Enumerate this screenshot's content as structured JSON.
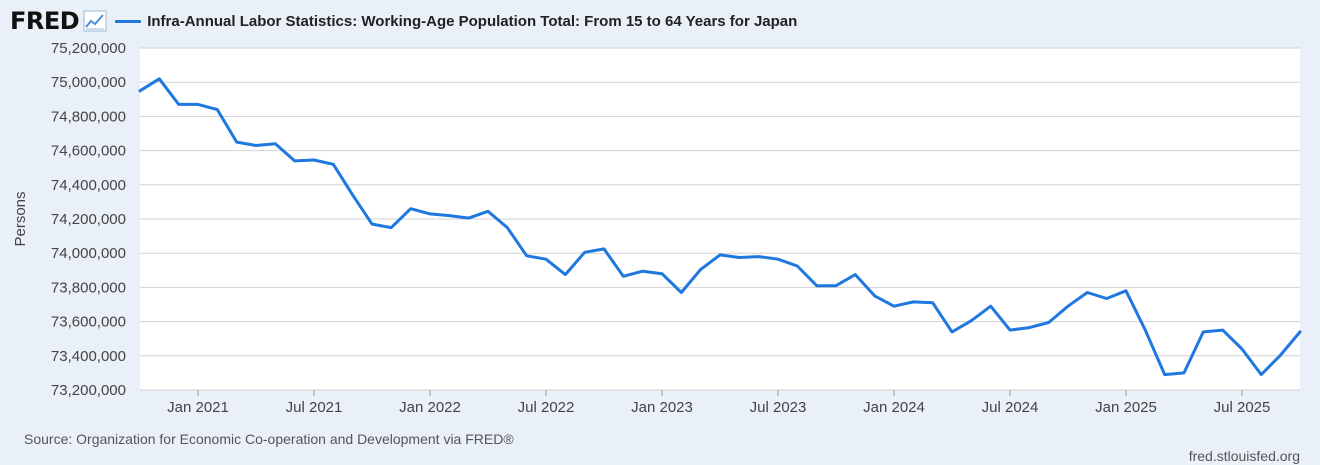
{
  "brand": {
    "logo_text": "FRED",
    "logo_icon": "chart-line-icon"
  },
  "colors": {
    "series": "#1f77e0",
    "plot_bg": "#ffffff",
    "page_bg": "#e9f0f8",
    "grid": "#d2d2d2"
  },
  "source_text": "Source: Organization for Economic Co-operation and Development via FRED®",
  "site_text": "fred.stlouisfed.org",
  "chart_data": {
    "type": "line",
    "title": "Infra-Annual Labor Statistics: Working-Age Population Total: From 15 to 64 Years for Japan",
    "xlabel": "",
    "ylabel": "Persons",
    "ylim": [
      73200000,
      75200000
    ],
    "yticks": [
      73200000,
      73400000,
      73600000,
      73800000,
      74000000,
      74200000,
      74400000,
      74600000,
      74800000,
      75000000,
      75200000
    ],
    "ytick_labels": [
      "73,200,000",
      "73,400,000",
      "73,600,000",
      "73,800,000",
      "74,000,000",
      "74,200,000",
      "74,400,000",
      "74,600,000",
      "74,800,000",
      "75,000,000",
      "75,200,000"
    ],
    "xlim": [
      "2020-10",
      "2025-10"
    ],
    "xticks": [
      "2021-01",
      "2021-07",
      "2022-01",
      "2022-07",
      "2023-01",
      "2023-07",
      "2024-01",
      "2024-07",
      "2025-01",
      "2025-07"
    ],
    "xtick_labels": [
      "Jan 2021",
      "Jul 2021",
      "Jan 2022",
      "Jul 2022",
      "Jan 2023",
      "Jul 2023",
      "Jan 2024",
      "Jul 2024",
      "Jan 2025",
      "Jul 2025"
    ],
    "grid": true,
    "series": [
      {
        "name": "Infra-Annual Labor Statistics: Working-Age Population Total: From 15 to 64 Years for Japan",
        "x": [
          "2020-10",
          "2020-11",
          "2020-12",
          "2021-01",
          "2021-02",
          "2021-03",
          "2021-04",
          "2021-05",
          "2021-06",
          "2021-07",
          "2021-08",
          "2021-09",
          "2021-10",
          "2021-11",
          "2021-12",
          "2022-01",
          "2022-02",
          "2022-03",
          "2022-04",
          "2022-05",
          "2022-06",
          "2022-07",
          "2022-08",
          "2022-09",
          "2022-10",
          "2022-11",
          "2022-12",
          "2023-01",
          "2023-02",
          "2023-03",
          "2023-04",
          "2023-05",
          "2023-06",
          "2023-07",
          "2023-08",
          "2023-09",
          "2023-10",
          "2023-11",
          "2023-12",
          "2024-01",
          "2024-02",
          "2024-03",
          "2024-04",
          "2024-05",
          "2024-06",
          "2024-07",
          "2024-08",
          "2024-09",
          "2024-10",
          "2024-11",
          "2024-12",
          "2025-01",
          "2025-02",
          "2025-03",
          "2025-04",
          "2025-05",
          "2025-06",
          "2025-07",
          "2025-08",
          "2025-09",
          "2025-10"
        ],
        "values": [
          74950000,
          75020000,
          74870000,
          74870000,
          74840000,
          74650000,
          74630000,
          74640000,
          74540000,
          74545000,
          74520000,
          74340000,
          74170000,
          74150000,
          74260000,
          74230000,
          74220000,
          74205000,
          74245000,
          74150000,
          73985000,
          73965000,
          73875000,
          74005000,
          74025000,
          73865000,
          73895000,
          73880000,
          73770000,
          73905000,
          73990000,
          73975000,
          73980000,
          73965000,
          73925000,
          73810000,
          73810000,
          73875000,
          73750000,
          73690000,
          73715000,
          73710000,
          73540000,
          73605000,
          73690000,
          73550000,
          73565000,
          73595000,
          73690000,
          73770000,
          73735000,
          73780000,
          73550000,
          73290000,
          73300000,
          73540000,
          73550000,
          73440000,
          73290000,
          73405000,
          73540000
        ]
      }
    ]
  }
}
